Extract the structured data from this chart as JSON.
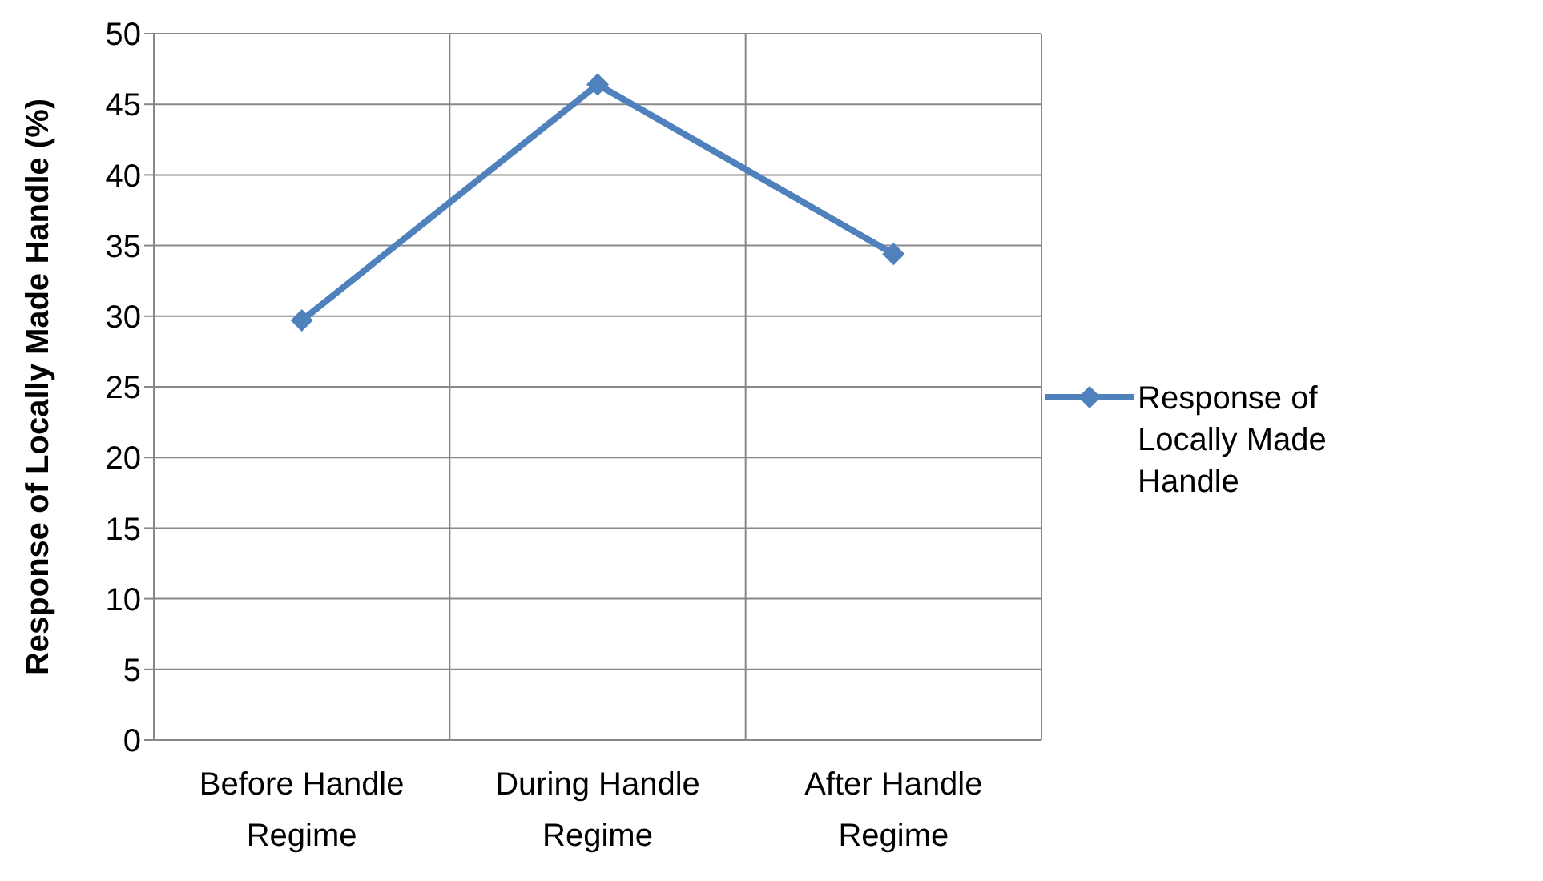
{
  "chart_data": {
    "type": "line",
    "ylabel": "Response of Locally Made Handle (%)",
    "categories": [
      "Before Handle Regime",
      "During Handle Regime",
      "After Handle Regime"
    ],
    "series": [
      {
        "name": "Response of Locally Made Handle",
        "color": "#4f81bd",
        "values": [
          29.7,
          46.4,
          34.4
        ]
      }
    ],
    "ylim": [
      0,
      50
    ],
    "yticks": [
      0,
      5,
      10,
      15,
      20,
      25,
      30,
      35,
      40,
      45,
      50
    ],
    "grid": true,
    "legend": "right",
    "marker": "diamond",
    "line_style": "solid"
  }
}
